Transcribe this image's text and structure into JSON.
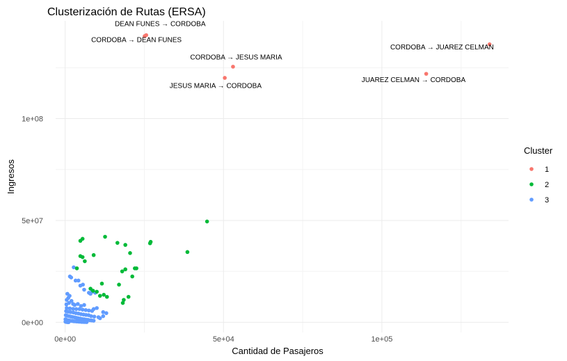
{
  "chart_data": {
    "type": "scatter",
    "title": "Clusterización de Rutas (ERSA)",
    "xlabel": "Cantidad de Pasajeros",
    "ylabel": "Ingresos",
    "xlim": [
      -3000,
      140000
    ],
    "ylim": [
      -5000000,
      148000000
    ],
    "xticks": [
      {
        "value": 0,
        "label": "0e+00"
      },
      {
        "value": 50000,
        "label": "5e+04"
      },
      {
        "value": 100000,
        "label": "1e+05"
      }
    ],
    "yticks": [
      {
        "value": 0,
        "label": "0e+00"
      },
      {
        "value": 50000000,
        "label": "5e+07"
      },
      {
        "value": 100000000,
        "label": "1e+08"
      }
    ],
    "grid": true,
    "legend": {
      "title": "Cluster",
      "position": "right"
    },
    "series": [
      {
        "name": "1",
        "color": "#F8766D",
        "points": [
          [
            25600,
            141000000
          ],
          [
            25100,
            140500000
          ],
          [
            53000,
            125500000
          ],
          [
            50400,
            120000000
          ],
          [
            134000,
            136500000
          ],
          [
            114000,
            122000000
          ]
        ]
      },
      {
        "name": "2",
        "color": "#00BA38",
        "points": [
          [
            44800,
            49500000
          ],
          [
            38600,
            34500000
          ],
          [
            27000,
            39500000
          ],
          [
            26800,
            38800000
          ],
          [
            12600,
            42000000
          ],
          [
            16500,
            39000000
          ],
          [
            19000,
            38000000
          ],
          [
            20500,
            34000000
          ],
          [
            9000,
            33000000
          ],
          [
            5500,
            41000000
          ],
          [
            4800,
            40000000
          ],
          [
            4800,
            32500000
          ],
          [
            5500,
            32000000
          ],
          [
            6200,
            30000000
          ],
          [
            3700,
            26500000
          ],
          [
            19000,
            26000000
          ],
          [
            22000,
            26500000
          ],
          [
            22500,
            26500000
          ],
          [
            18000,
            25000000
          ],
          [
            21200,
            22500000
          ],
          [
            17000,
            18500000
          ],
          [
            11600,
            19000000
          ],
          [
            8000,
            16500000
          ],
          [
            8800,
            15500000
          ],
          [
            10000,
            15000000
          ],
          [
            11000,
            13000000
          ],
          [
            12200,
            13500000
          ],
          [
            13200,
            12500000
          ],
          [
            18500,
            11000000
          ],
          [
            20000,
            12500000
          ],
          [
            18200,
            9500000
          ]
        ]
      },
      {
        "name": "3",
        "color": "#619CFF",
        "points": [
          [
            2700,
            27000000
          ],
          [
            1500,
            22500000
          ],
          [
            1900,
            22000000
          ],
          [
            3300,
            20500000
          ],
          [
            4200,
            20500000
          ],
          [
            4800,
            18000000
          ],
          [
            5600,
            18500000
          ],
          [
            6000,
            16000000
          ],
          [
            7500,
            14500000
          ],
          [
            8500,
            15000000
          ],
          [
            8000,
            14000000
          ],
          [
            9500,
            14500000
          ],
          [
            700,
            14000000
          ],
          [
            500,
            11000000
          ],
          [
            1000,
            12000000
          ],
          [
            1400,
            13000000
          ],
          [
            2000,
            10500000
          ],
          [
            1200,
            9500000
          ],
          [
            400,
            8800000
          ],
          [
            2500,
            9000000
          ],
          [
            3000,
            8500000
          ],
          [
            4000,
            9000000
          ],
          [
            5000,
            8000000
          ],
          [
            6000,
            8500000
          ],
          [
            9000,
            6500000
          ],
          [
            10000,
            7000000
          ],
          [
            12000,
            5000000
          ],
          [
            13000,
            4500000
          ],
          [
            500,
            7000000
          ],
          [
            1500,
            6800000
          ],
          [
            2500,
            6600000
          ],
          [
            3500,
            6500000
          ],
          [
            4500,
            6500000
          ],
          [
            5500,
            6200000
          ],
          [
            6500,
            6000000
          ],
          [
            7500,
            5800000
          ],
          [
            8500,
            5600000
          ],
          [
            300,
            5500000
          ],
          [
            900,
            5200000
          ],
          [
            1700,
            5000000
          ],
          [
            2600,
            4800000
          ],
          [
            3400,
            4500000
          ],
          [
            4200,
            4300000
          ],
          [
            5000,
            4000000
          ],
          [
            5800,
            3800000
          ],
          [
            6600,
            3600000
          ],
          [
            7400,
            3500000
          ],
          [
            8200,
            3000000
          ],
          [
            9200,
            2800000
          ],
          [
            10500,
            2500000
          ],
          [
            11000,
            2000000
          ],
          [
            12000,
            3000000
          ],
          [
            200,
            3500000
          ],
          [
            700,
            3200000
          ],
          [
            1200,
            3000000
          ],
          [
            1800,
            2800000
          ],
          [
            2400,
            2600000
          ],
          [
            3000,
            2400000
          ],
          [
            3600,
            2200000
          ],
          [
            4200,
            2000000
          ],
          [
            4800,
            1800000
          ],
          [
            5400,
            1600000
          ],
          [
            6000,
            1500000
          ],
          [
            6600,
            1300000
          ],
          [
            7200,
            1200000
          ],
          [
            7800,
            1000000
          ],
          [
            8400,
            900000
          ],
          [
            9000,
            800000
          ],
          [
            100,
            1500000
          ],
          [
            400,
            1200000
          ],
          [
            800,
            1000000
          ],
          [
            1200,
            900000
          ],
          [
            1600,
            800000
          ],
          [
            2000,
            700000
          ],
          [
            2400,
            600000
          ],
          [
            2800,
            500000
          ],
          [
            3200,
            500000
          ],
          [
            3600,
            400000
          ],
          [
            4000,
            400000
          ],
          [
            4400,
            300000
          ],
          [
            4800,
            300000
          ],
          [
            5200,
            200000
          ],
          [
            5600,
            200000
          ],
          [
            6000,
            150000
          ],
          [
            6400,
            150000
          ],
          [
            6800,
            100000
          ],
          [
            100,
            300000
          ],
          [
            300,
            200000
          ],
          [
            500,
            150000
          ],
          [
            700,
            100000
          ],
          [
            900,
            80000
          ],
          [
            1100,
            60000
          ]
        ]
      }
    ],
    "annotations": [
      {
        "text": "DEAN FUNES → CORDOBA",
        "x": 30000,
        "y": 145500000
      },
      {
        "text": "CORDOBA → DEAN FUNES",
        "x": 22500,
        "y": 137500000
      },
      {
        "text": "CORDOBA → JESUS MARIA",
        "x": 54000,
        "y": 129000000
      },
      {
        "text": "JESUS MARIA → CORDOBA",
        "x": 47500,
        "y": 115000000
      },
      {
        "text": "CORDOBA → JUAREZ CELMAN",
        "x": 119000,
        "y": 134000000
      },
      {
        "text": "JUAREZ CELMAN → CORDOBA",
        "x": 110000,
        "y": 118000000
      }
    ]
  }
}
